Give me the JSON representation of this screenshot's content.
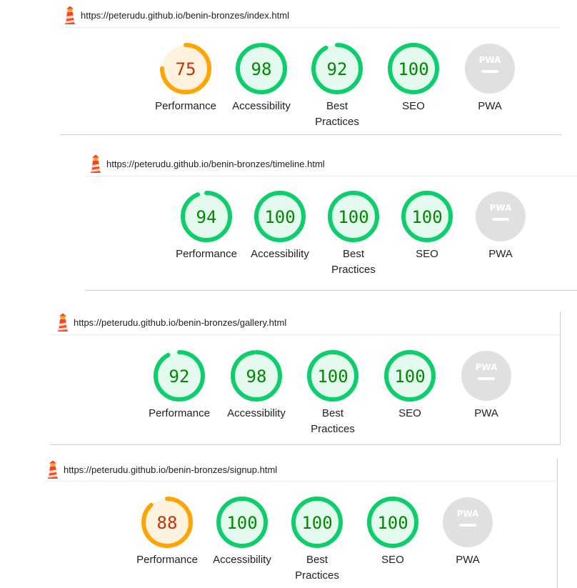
{
  "colors": {
    "pass": "#0cce6b",
    "pass_bg": "#e5faef",
    "pass_text": "#008800",
    "average": "#ffa400",
    "average_bg": "#fff3e0",
    "average_text": "#c33300",
    "na": "#e0e0e0",
    "na_text": "#9e9e9e"
  },
  "reports": [
    {
      "url": "https://peterudu.github.io/benin-bronzes/index.html",
      "icon": "lighthouse-icon",
      "categories": [
        {
          "label": [
            "Performance"
          ],
          "score": 75,
          "state": "average"
        },
        {
          "label": [
            "Accessibility"
          ],
          "score": 98,
          "state": "pass"
        },
        {
          "label": [
            "Best",
            "Practices"
          ],
          "score": 92,
          "state": "pass"
        },
        {
          "label": [
            "SEO"
          ],
          "score": 100,
          "state": "pass"
        },
        {
          "label": [
            "PWA"
          ],
          "score": null,
          "state": "na",
          "badge": "PWA"
        }
      ]
    },
    {
      "url": "https://peterudu.github.io/benin-bronzes/timeline.html",
      "icon": "lighthouse-icon",
      "categories": [
        {
          "label": [
            "Performance"
          ],
          "score": 94,
          "state": "pass"
        },
        {
          "label": [
            "Accessibility"
          ],
          "score": 100,
          "state": "pass"
        },
        {
          "label": [
            "Best",
            "Practices"
          ],
          "score": 100,
          "state": "pass"
        },
        {
          "label": [
            "SEO"
          ],
          "score": 100,
          "state": "pass"
        },
        {
          "label": [
            "PWA"
          ],
          "score": null,
          "state": "na",
          "badge": "PWA"
        }
      ]
    },
    {
      "url": "https://peterudu.github.io/benin-bronzes/gallery.html",
      "icon": "lighthouse-icon",
      "categories": [
        {
          "label": [
            "Performance"
          ],
          "score": 92,
          "state": "pass"
        },
        {
          "label": [
            "Accessibility"
          ],
          "score": 98,
          "state": "pass"
        },
        {
          "label": [
            "Best",
            "Practices"
          ],
          "score": 100,
          "state": "pass"
        },
        {
          "label": [
            "SEO"
          ],
          "score": 100,
          "state": "pass"
        },
        {
          "label": [
            "PWA"
          ],
          "score": null,
          "state": "na",
          "badge": "PWA"
        }
      ]
    },
    {
      "url": "https://peterudu.github.io/benin-bronzes/signup.html",
      "icon": "lighthouse-icon",
      "categories": [
        {
          "label": [
            "Performance"
          ],
          "score": 88,
          "state": "average"
        },
        {
          "label": [
            "Accessibility"
          ],
          "score": 100,
          "state": "pass"
        },
        {
          "label": [
            "Best",
            "Practices"
          ],
          "score": 100,
          "state": "pass"
        },
        {
          "label": [
            "SEO"
          ],
          "score": 100,
          "state": "pass"
        },
        {
          "label": [
            "PWA"
          ],
          "score": null,
          "state": "na",
          "badge": "PWA"
        }
      ]
    }
  ]
}
